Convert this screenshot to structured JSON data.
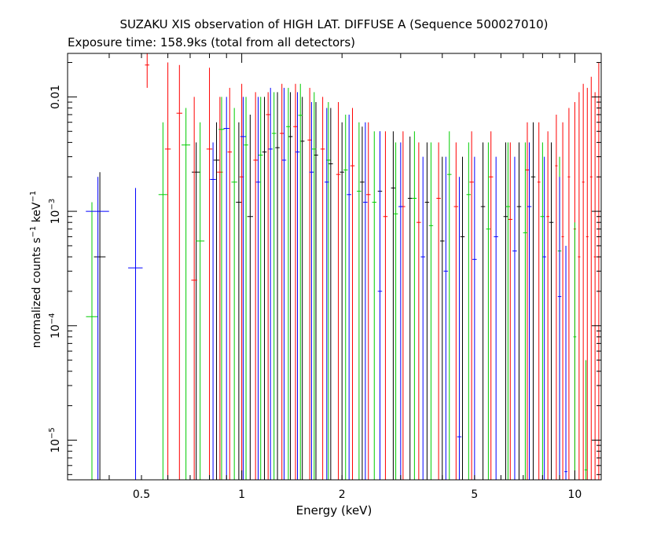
{
  "chart_data": {
    "type": "scatter",
    "title": "SUZAKU XIS observation of HIGH LAT. DIFFUSE A (Sequence 500027010)",
    "subtitle": "Exposure time: 158.9ks (total from all detectors)",
    "xlabel": "Energy (keV)",
    "ylabel": {
      "base": "normalized counts s",
      "exp1": "−1",
      "mid": " keV",
      "exp2": "−1"
    },
    "xscale": "log",
    "yscale": "log",
    "xlim": [
      0.3,
      12
    ],
    "ylim": [
      4.5e-06,
      0.024
    ],
    "x_ticks": [
      {
        "value": 0.5,
        "label": "0.5"
      },
      {
        "value": 1,
        "label": "1"
      },
      {
        "value": 2,
        "label": "2"
      },
      {
        "value": 5,
        "label": "5"
      },
      {
        "value": 10,
        "label": "10"
      }
    ],
    "y_ticks": [
      {
        "value": 0.01,
        "label": "0.01",
        "exp": ""
      },
      {
        "value": 0.001,
        "label": "10",
        "exp": "−3"
      },
      {
        "value": 0.0001,
        "label": "10",
        "exp": "−4"
      },
      {
        "value": 1e-05,
        "label": "10",
        "exp": "−5"
      }
    ],
    "grid": false,
    "series": [
      {
        "color": "#000000",
        "points": [
          [
            0.375,
            0.0004,
            0.04,
            0.0022,
            0
          ],
          [
            0.73,
            0.0022,
            0.03,
            0.004,
            0
          ],
          [
            0.84,
            0.0028,
            0.02,
            0.006,
            0
          ],
          [
            0.98,
            0.0012,
            0.02,
            0.006,
            0
          ],
          [
            1.06,
            0.0009,
            0.02,
            0.007,
            0
          ],
          [
            1.17,
            0.0033,
            0.015,
            0.01,
            0
          ],
          [
            1.28,
            0.0036,
            0.015,
            0.011,
            0
          ],
          [
            1.4,
            0.0045,
            0.015,
            0.011,
            0
          ],
          [
            1.52,
            0.0041,
            0.015,
            0.01,
            0
          ],
          [
            1.67,
            0.0031,
            0.015,
            0.009,
            0
          ],
          [
            1.85,
            0.0026,
            0.015,
            0.008,
            0
          ],
          [
            2.0,
            0.0022,
            0.015,
            0.006,
            0
          ],
          [
            2.3,
            0.0018,
            0.015,
            0.0055,
            0
          ],
          [
            2.6,
            0.0015,
            0.015,
            0.005,
            0
          ],
          [
            2.85,
            0.0016,
            0.015,
            0.005,
            0
          ],
          [
            3.2,
            0.0013,
            0.015,
            0.0045,
            0
          ],
          [
            3.6,
            0.0012,
            0.015,
            0.004,
            0
          ],
          [
            4.0,
            0.00055,
            0.015,
            0.003,
            0
          ],
          [
            4.6,
            0.0006,
            0.015,
            0.003,
            0
          ],
          [
            5.3,
            0.0011,
            0.015,
            0.004,
            0
          ],
          [
            6.2,
            0.0009,
            0.015,
            0.004,
            0
          ],
          [
            6.8,
            0.0011,
            0.015,
            0.004,
            0
          ],
          [
            7.5,
            0.002,
            0.015,
            0.006,
            0
          ],
          [
            8.5,
            0.0008,
            0.015,
            0.004,
            0
          ]
        ]
      },
      {
        "color": "#ff0000",
        "points": [
          [
            0.52,
            0.019,
            0.015,
            0.024,
            0.012
          ],
          [
            0.6,
            0.0035,
            0.02,
            0.02,
            0
          ],
          [
            0.65,
            0.0072,
            0.02,
            0.019,
            0
          ],
          [
            0.72,
            0.00025,
            0.02,
            0.01,
            0
          ],
          [
            0.8,
            0.0035,
            0.02,
            0.018,
            0
          ],
          [
            0.86,
            0.0022,
            0.02,
            0.01,
            0
          ],
          [
            0.92,
            0.0033,
            0.015,
            0.012,
            0
          ],
          [
            1.0,
            0.002,
            0.015,
            0.013,
            0
          ],
          [
            1.1,
            0.0028,
            0.015,
            0.011,
            0
          ],
          [
            1.2,
            0.007,
            0.015,
            0.011,
            0
          ],
          [
            1.32,
            0.0048,
            0.015,
            0.013,
            0
          ],
          [
            1.45,
            0.0055,
            0.015,
            0.013,
            0
          ],
          [
            1.6,
            0.0042,
            0.015,
            0.012,
            0
          ],
          [
            1.75,
            0.0035,
            0.015,
            0.01,
            0
          ],
          [
            1.95,
            0.0021,
            0.015,
            0.009,
            0
          ],
          [
            2.15,
            0.0025,
            0.015,
            0.008,
            0
          ],
          [
            2.4,
            0.0014,
            0.015,
            0.006,
            0
          ],
          [
            2.7,
            0.0009,
            0.015,
            0.005,
            0
          ],
          [
            3.05,
            0.0011,
            0.015,
            0.005,
            0
          ],
          [
            3.4,
            0.0008,
            0.015,
            0.004,
            0
          ],
          [
            3.9,
            0.0013,
            0.015,
            0.004,
            0
          ],
          [
            4.4,
            0.0011,
            0.015,
            0.004,
            0
          ],
          [
            4.9,
            0.0018,
            0.015,
            0.005,
            0
          ],
          [
            5.6,
            0.002,
            0.015,
            0.005,
            0
          ],
          [
            6.4,
            0.00085,
            0.015,
            0.004,
            0
          ],
          [
            7.2,
            0.0023,
            0.015,
            0.006,
            0
          ],
          [
            7.8,
            0.0018,
            0.01,
            0.006,
            0
          ],
          [
            8.3,
            0.0009,
            0.01,
            0.005,
            0
          ],
          [
            8.8,
            0.0025,
            0.008,
            0.007,
            0
          ],
          [
            9.2,
            0.0006,
            0.008,
            0.006,
            0
          ],
          [
            9.6,
            0.002,
            0.008,
            0.008,
            0
          ],
          [
            10.0,
            0.0007,
            0.008,
            0.009,
            0
          ],
          [
            10.3,
            0.0004,
            0.008,
            0.011,
            0
          ],
          [
            10.6,
            0.0018,
            0.008,
            0.013,
            0
          ],
          [
            10.9,
            0.0006,
            0.008,
            0.012,
            0
          ],
          [
            11.2,
            0.002,
            0.008,
            0.015,
            0
          ],
          [
            11.5,
            0.0004,
            0.008,
            0.011,
            0
          ],
          [
            11.8,
            0.009,
            0.006,
            0.02,
            0
          ]
        ]
      },
      {
        "color": "#00cc00",
        "points": [
          [
            0.355,
            0.00012,
            0.04,
            0.0012,
            0
          ],
          [
            0.58,
            0.0014,
            0.03,
            0.006,
            0
          ],
          [
            0.68,
            0.0038,
            0.03,
            0.008,
            0
          ],
          [
            0.75,
            0.00055,
            0.03,
            0.006,
            0
          ],
          [
            0.87,
            0.0052,
            0.02,
            0.01,
            0
          ],
          [
            0.95,
            0.0018,
            0.02,
            0.008,
            0
          ],
          [
            1.03,
            0.0038,
            0.015,
            0.01,
            0
          ],
          [
            1.14,
            0.0031,
            0.015,
            0.01,
            0
          ],
          [
            1.25,
            0.0048,
            0.015,
            0.011,
            0
          ],
          [
            1.38,
            0.0055,
            0.015,
            0.012,
            0
          ],
          [
            1.5,
            0.0069,
            0.015,
            0.013,
            0
          ],
          [
            1.65,
            0.0035,
            0.015,
            0.011,
            0
          ],
          [
            1.82,
            0.0028,
            0.015,
            0.009,
            0
          ],
          [
            2.05,
            0.0023,
            0.015,
            0.007,
            0
          ],
          [
            2.25,
            0.0015,
            0.015,
            0.006,
            0
          ],
          [
            2.5,
            0.0012,
            0.015,
            0.005,
            0
          ],
          [
            2.9,
            0.00095,
            0.015,
            0.004,
            0
          ],
          [
            3.3,
            0.0013,
            0.015,
            0.005,
            0
          ],
          [
            3.7,
            0.00075,
            0.015,
            0.004,
            0
          ],
          [
            4.2,
            0.0021,
            0.015,
            0.005,
            0
          ],
          [
            4.8,
            0.0014,
            0.015,
            0.004,
            0
          ],
          [
            5.5,
            0.0007,
            0.015,
            0.004,
            0
          ],
          [
            6.3,
            0.0011,
            0.015,
            0.004,
            0
          ],
          [
            7.1,
            0.00065,
            0.015,
            0.004,
            0
          ],
          [
            8.0,
            0.0009,
            0.015,
            0.004,
            0
          ],
          [
            9.0,
            0.00045,
            0.012,
            0.003,
            0
          ],
          [
            10.0,
            8e-05,
            0.01,
            0.0008,
            0
          ],
          [
            10.8,
            5.5e-06,
            0.01,
            5e-05,
            0
          ]
        ]
      },
      {
        "color": "#0000ff",
        "points": [
          [
            0.37,
            0.001,
            0.08,
            0.002,
            0
          ],
          [
            0.48,
            0.00032,
            0.05,
            0.0016,
            0
          ],
          [
            0.82,
            0.0019,
            0.02,
            0.004,
            0
          ],
          [
            0.9,
            0.0053,
            0.02,
            0.01,
            0
          ],
          [
            1.01,
            0.0045,
            0.02,
            0.01,
            0
          ],
          [
            1.12,
            0.0018,
            0.015,
            0.01,
            0
          ],
          [
            1.22,
            0.0035,
            0.015,
            0.012,
            0
          ],
          [
            1.34,
            0.0028,
            0.015,
            0.012,
            0
          ],
          [
            1.47,
            0.0033,
            0.015,
            0.011,
            0
          ],
          [
            1.62,
            0.0022,
            0.015,
            0.009,
            0
          ],
          [
            1.8,
            0.0018,
            0.015,
            0.008,
            0
          ],
          [
            2.1,
            0.0014,
            0.015,
            0.007,
            0
          ],
          [
            2.35,
            0.0012,
            0.015,
            0.006,
            0
          ],
          [
            2.6,
            0.0002,
            0.015,
            0.005,
            0
          ],
          [
            3.0,
            0.0011,
            0.015,
            0.004,
            0
          ],
          [
            3.5,
            0.0004,
            0.015,
            0.003,
            0
          ],
          [
            4.1,
            0.0003,
            0.015,
            0.003,
            0
          ],
          [
            4.5,
            1.07e-05,
            0.015,
            0.002,
            0
          ],
          [
            5.0,
            0.00038,
            0.015,
            0.003,
            0
          ],
          [
            5.8,
            0.0006,
            0.015,
            0.003,
            0
          ],
          [
            6.6,
            0.00045,
            0.015,
            0.003,
            0
          ],
          [
            7.3,
            0.0011,
            0.015,
            0.004,
            0
          ],
          [
            8.1,
            0.0004,
            0.012,
            0.003,
            0
          ],
          [
            9.0,
            0.00018,
            0.012,
            0.002,
            0
          ],
          [
            9.4,
            5.3e-06,
            0.01,
            0.0005,
            0
          ]
        ]
      }
    ]
  }
}
